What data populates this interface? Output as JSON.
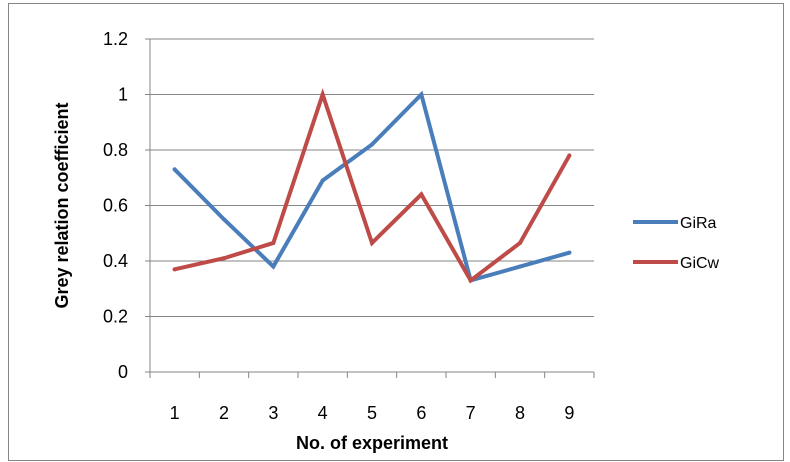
{
  "chart_data": {
    "type": "line",
    "title": "",
    "xlabel": "No. of experiment",
    "ylabel": "Grey relation coefficient",
    "categories": [
      "1",
      "2",
      "3",
      "4",
      "5",
      "6",
      "7",
      "8",
      "9"
    ],
    "ylim": [
      0,
      1.2
    ],
    "yticks": [
      0,
      0.2,
      0.4,
      0.6,
      0.8,
      1,
      1.2
    ],
    "ytick_labels": [
      "0",
      "0.2",
      "0.4",
      "0.6",
      "0.8",
      "1",
      "1.2"
    ],
    "grid": "horizontal",
    "legend_position": "right",
    "series": [
      {
        "name": "GiRa",
        "color": "#4a7ebb",
        "values": [
          0.73,
          0.55,
          0.38,
          0.69,
          0.82,
          1.0,
          0.33,
          0.38,
          0.43
        ]
      },
      {
        "name": "GiCw",
        "color": "#be4b48",
        "values": [
          0.37,
          0.41,
          0.465,
          1.0,
          0.465,
          0.64,
          0.33,
          0.465,
          0.78
        ]
      }
    ]
  }
}
